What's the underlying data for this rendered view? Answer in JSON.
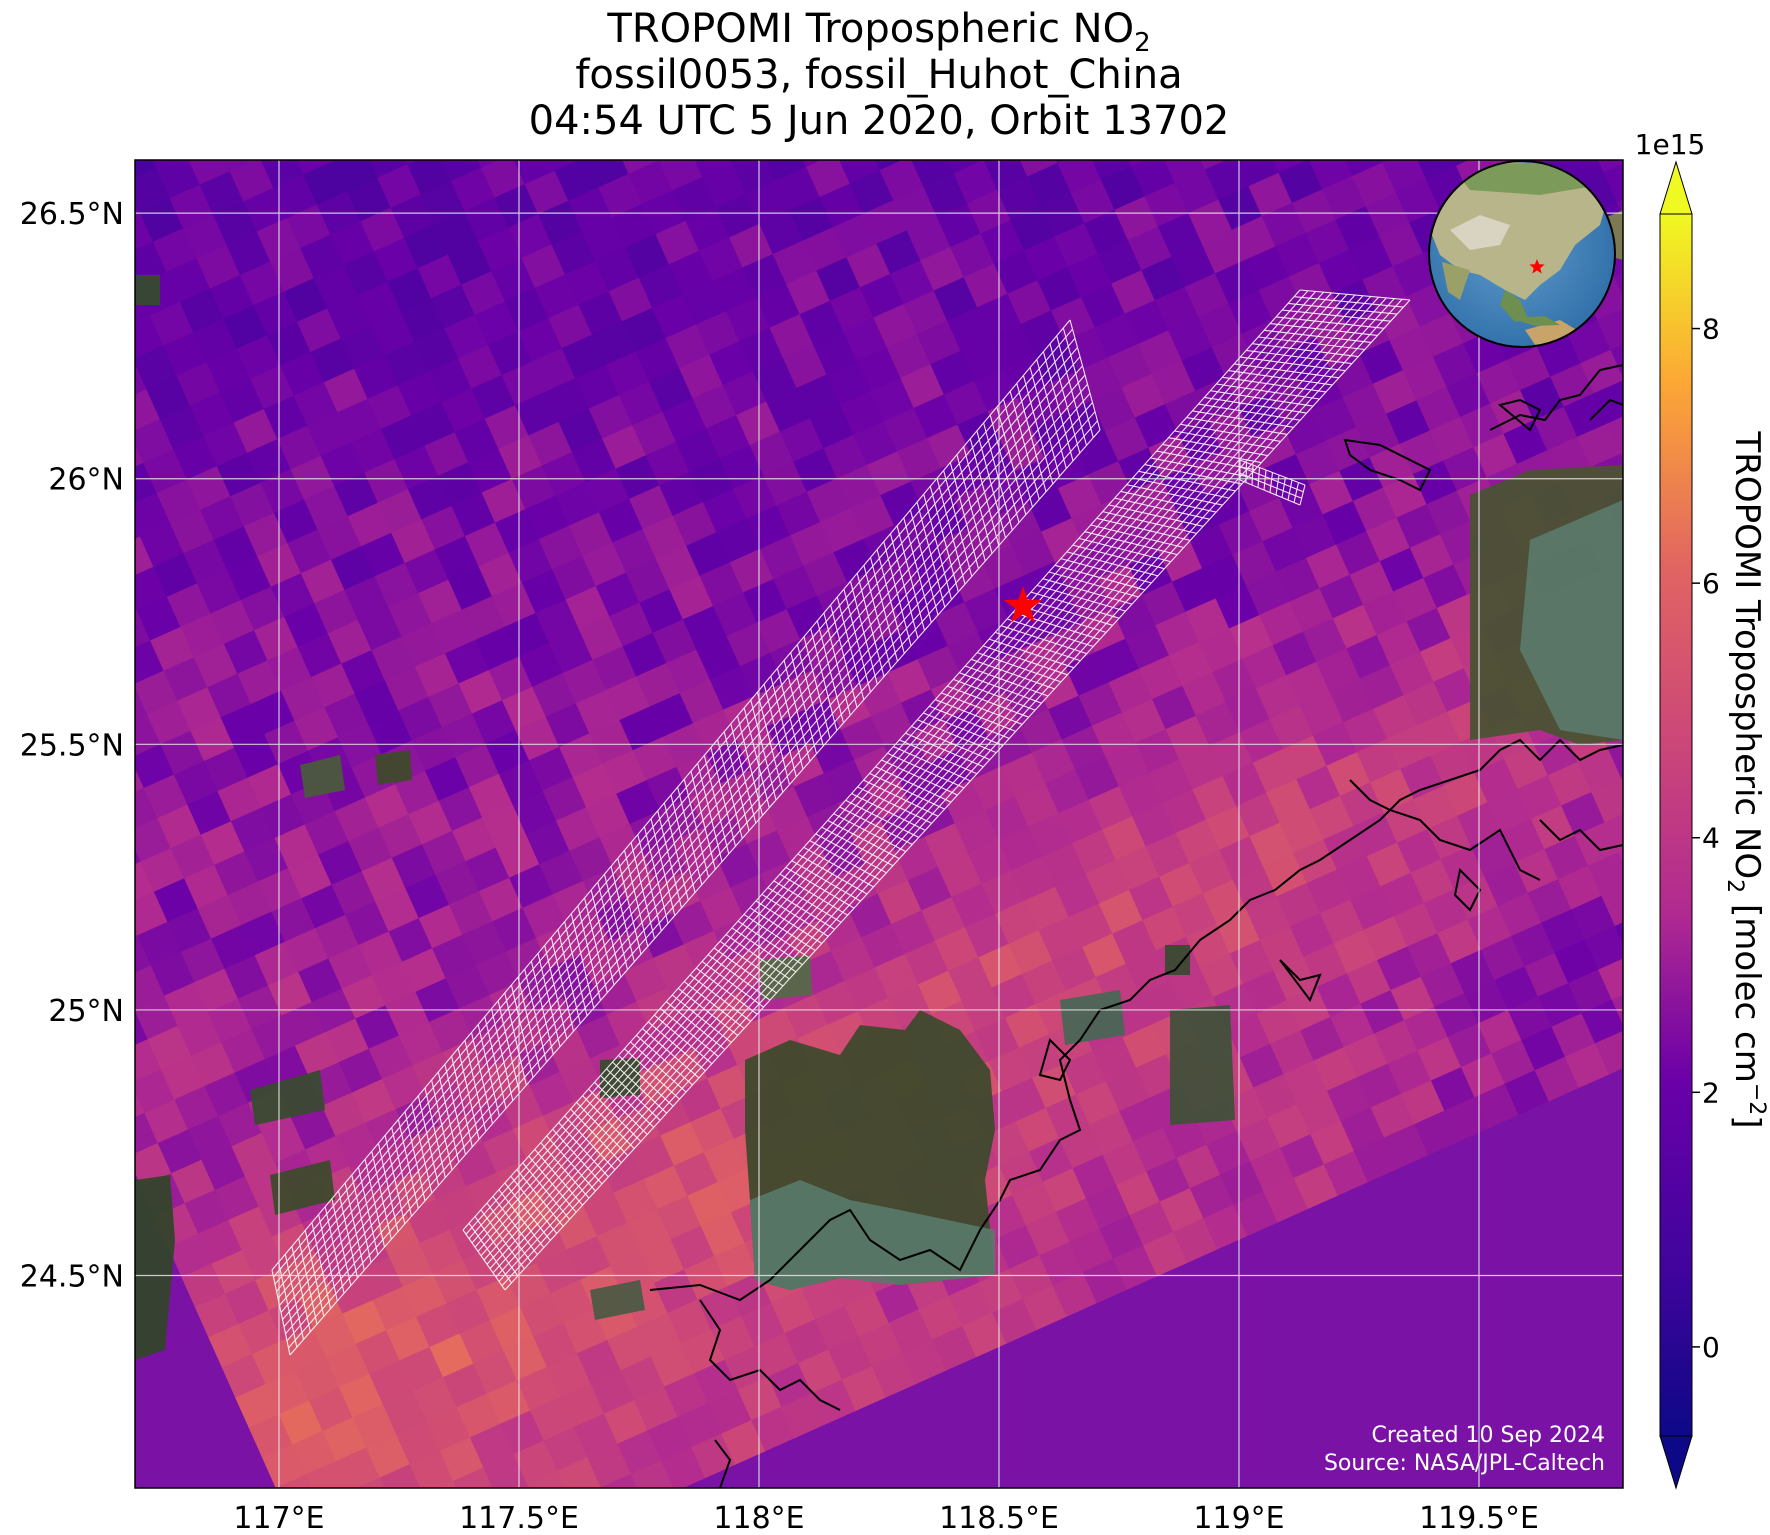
{
  "title": {
    "line1_main": "TROPOMI Tropospheric NO",
    "line1_sub": "2",
    "line2": "fossil0053, fossil_Huhot_China",
    "line3": "04:54 UTC 5 Jun 2020, Orbit 13702"
  },
  "map": {
    "lon_range": [
      116.7,
      119.8
    ],
    "lat_range": [
      24.1,
      26.6
    ],
    "lon_ticks": [
      {
        "value": 117.0,
        "label": "117°E"
      },
      {
        "value": 117.5,
        "label": "117.5°E"
      },
      {
        "value": 118.0,
        "label": "118°E"
      },
      {
        "value": 118.5,
        "label": "118.5°E"
      },
      {
        "value": 119.0,
        "label": "119°E"
      },
      {
        "value": 119.5,
        "label": "119.5°E"
      }
    ],
    "lat_ticks": [
      {
        "value": 26.5,
        "label": "26.5°N"
      },
      {
        "value": 26.0,
        "label": "26°N"
      },
      {
        "value": 25.5,
        "label": "25.5°N"
      },
      {
        "value": 25.0,
        "label": "25°N"
      },
      {
        "value": 24.5,
        "label": "24.5°N"
      }
    ],
    "grid": true,
    "target_marker": {
      "lon": 118.55,
      "lat": 25.76,
      "color": "#ff0000"
    },
    "inset_globe_marker": "red-star",
    "credits": [
      "Created 10 Sep 2024",
      "Source: NASA/JPL-Caltech"
    ]
  },
  "colorbar": {
    "exponent_label": "1e15",
    "label_main": "TROPOMI Tropospheric NO",
    "label_sub": "2",
    "label_units": " [molec cm",
    "label_sup": "−2",
    "label_end": "]",
    "range": [
      -0.7,
      8.9
    ],
    "ticks": [
      {
        "value": 0,
        "label": "0"
      },
      {
        "value": 2,
        "label": "2"
      },
      {
        "value": 4,
        "label": "4"
      },
      {
        "value": 6,
        "label": "6"
      },
      {
        "value": 8,
        "label": "8"
      }
    ],
    "colormap": "plasma",
    "extend": "both"
  }
}
